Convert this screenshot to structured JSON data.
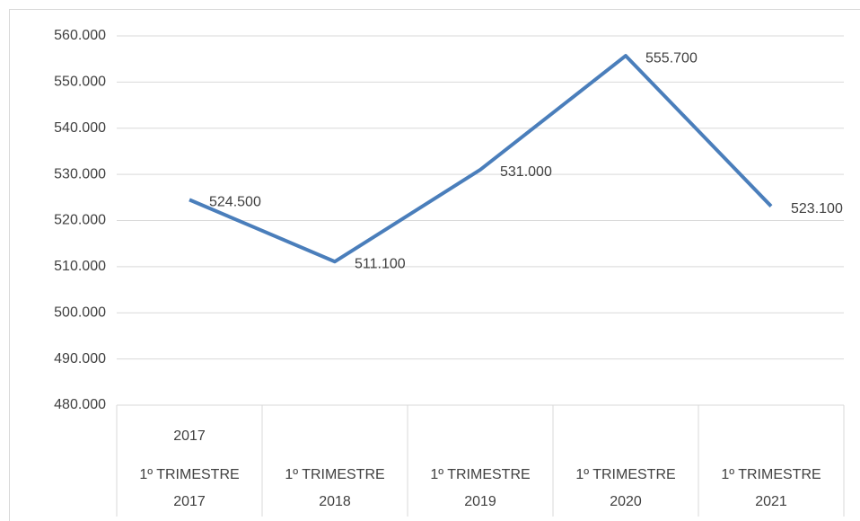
{
  "chart_data": {
    "type": "line",
    "categories": [
      "1º TRIMESTRE 2017",
      "1º TRIMESTRE 2018",
      "1º TRIMESTRE 2019",
      "1º TRIMESTRE 2020",
      "1º TRIMESTRE 2021"
    ],
    "category_groups": [
      "2017",
      null,
      null,
      null,
      null
    ],
    "series": [
      {
        "color": "#4a7ebb",
        "values": [
          524500,
          511100,
          531000,
          555700,
          523100
        ],
        "value_labels": [
          "524.500",
          "511.100",
          "531.000",
          "555.700",
          "523.100"
        ]
      }
    ],
    "ylim": [
      480000,
      560000
    ],
    "yticks": [
      {
        "value": 480000,
        "label": "480.000"
      },
      {
        "value": 490000,
        "label": "490.000"
      },
      {
        "value": 500000,
        "label": "500.000"
      },
      {
        "value": 510000,
        "label": "510.000"
      },
      {
        "value": 520000,
        "label": "520.000"
      },
      {
        "value": 530000,
        "label": "530.000"
      },
      {
        "value": 540000,
        "label": "540.000"
      },
      {
        "value": 550000,
        "label": "550.000"
      },
      {
        "value": 560000,
        "label": "560.000"
      }
    ],
    "grid": true
  }
}
